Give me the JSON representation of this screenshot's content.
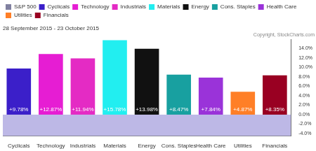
{
  "chart_data": {
    "type": "bar",
    "title": "28 September 2015 - 23 October 2015",
    "subtitle": "Copyright, StockCharts.com",
    "categories": [
      "Cyclicals",
      "Technology",
      "Industrials",
      "Materials",
      "Energy",
      "Cons. Staples",
      "Health Care",
      "Utilities",
      "Financials"
    ],
    "series": [
      {
        "name": "S&P 500",
        "color": "#8080a0",
        "values": [
          null,
          null,
          null,
          null,
          null,
          null,
          null,
          null,
          null
        ],
        "value_labels": [
          null,
          null,
          null,
          null,
          null,
          null,
          null,
          null,
          null
        ]
      },
      {
        "name": "Cyclicals",
        "color": "#3b1fc9",
        "values": [
          9.78,
          null,
          null,
          null,
          null,
          null,
          null,
          null,
          null
        ],
        "value_labels": [
          "+9.78%",
          null,
          null,
          null,
          null,
          null,
          null,
          null,
          null
        ]
      },
      {
        "name": "Technology",
        "color": "#e61dd3",
        "values": [
          null,
          12.87,
          null,
          null,
          null,
          null,
          null,
          null,
          null
        ],
        "value_labels": [
          null,
          "+12.87%",
          null,
          null,
          null,
          null,
          null,
          null,
          null
        ]
      },
      {
        "name": "Industrials",
        "color": "#e42bc4",
        "values": [
          null,
          null,
          11.94,
          null,
          null,
          null,
          null,
          null,
          null
        ],
        "value_labels": [
          null,
          null,
          "+11.94%",
          null,
          null,
          null,
          null,
          null,
          null
        ]
      },
      {
        "name": "Materials",
        "color": "#22eef0",
        "values": [
          null,
          null,
          null,
          15.78,
          null,
          null,
          null,
          null,
          null
        ],
        "value_labels": [
          null,
          null,
          null,
          "+15.78%",
          null,
          null,
          null,
          null,
          null
        ]
      },
      {
        "name": "Energy",
        "color": "#111111",
        "values": [
          null,
          null,
          null,
          null,
          13.98,
          null,
          null,
          null,
          null
        ],
        "value_labels": [
          null,
          null,
          null,
          null,
          "+13.98%",
          null,
          null,
          null,
          null
        ]
      },
      {
        "name": "Cons. Staples",
        "color": "#18a0a0",
        "values": [
          null,
          null,
          null,
          null,
          null,
          8.47,
          null,
          null,
          null
        ],
        "value_labels": [
          null,
          null,
          null,
          null,
          null,
          "+8.47%",
          null,
          null,
          null
        ]
      },
      {
        "name": "Health Care",
        "color": "#9a33d9",
        "values": [
          null,
          null,
          null,
          null,
          null,
          null,
          7.84,
          null,
          null
        ],
        "value_labels": [
          null,
          null,
          null,
          null,
          null,
          null,
          "+7.84%",
          null,
          null
        ]
      },
      {
        "name": "Utilities",
        "color": "#ff7f27",
        "values": [
          null,
          null,
          null,
          null,
          null,
          null,
          null,
          4.87,
          null
        ],
        "value_labels": [
          null,
          null,
          null,
          null,
          null,
          null,
          null,
          "+4.87%",
          null
        ]
      },
      {
        "name": "Financials",
        "color": "#990022",
        "values": [
          null,
          null,
          null,
          null,
          null,
          null,
          null,
          null,
          8.35
        ],
        "value_labels": [
          null,
          null,
          null,
          null,
          null,
          null,
          null,
          null,
          "+8.35%"
        ]
      }
    ],
    "ylim": [
      -4.5,
      16
    ],
    "yticks": [
      {
        "value": -4,
        "label": "-4.0%"
      },
      {
        "value": -2,
        "label": "-2.0%"
      },
      {
        "value": 0,
        "label": "0.0%"
      },
      {
        "value": 2,
        "label": "2.0%"
      },
      {
        "value": 4,
        "label": "4.0%"
      },
      {
        "value": 6,
        "label": "6.0%"
      },
      {
        "value": 8,
        "label": "8.0%"
      },
      {
        "value": 10,
        "label": "10.0%"
      },
      {
        "value": 12,
        "label": "12.0%"
      },
      {
        "value": 14,
        "label": "14.0%"
      }
    ],
    "grid": false,
    "legend": "top",
    "data_labels": true
  }
}
